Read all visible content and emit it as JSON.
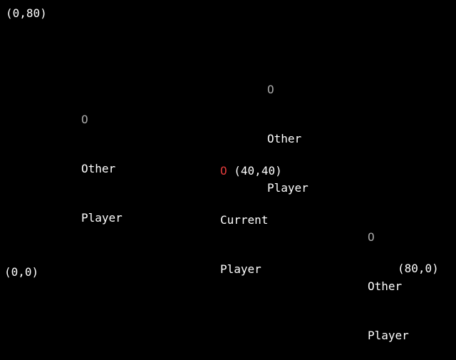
{
  "colors": {
    "background": "#000000",
    "text": "#ffffff",
    "other_marker": "#a8a8a8",
    "current_marker": "#e03a3a"
  },
  "corners": {
    "top_left": "(0,80)",
    "bottom_left": "(0,0)",
    "bottom_right": "(80,0)"
  },
  "other_players": [
    {
      "marker": "O",
      "line1": "Other",
      "line2": "Player"
    },
    {
      "marker": "O",
      "line1": "Other",
      "line2": "Player"
    },
    {
      "marker": "O",
      "line1": "Other",
      "line2": "Player"
    }
  ],
  "current_player": {
    "marker": "O",
    "coords": "(40,40)",
    "line1": "Current",
    "line2": "Player"
  }
}
